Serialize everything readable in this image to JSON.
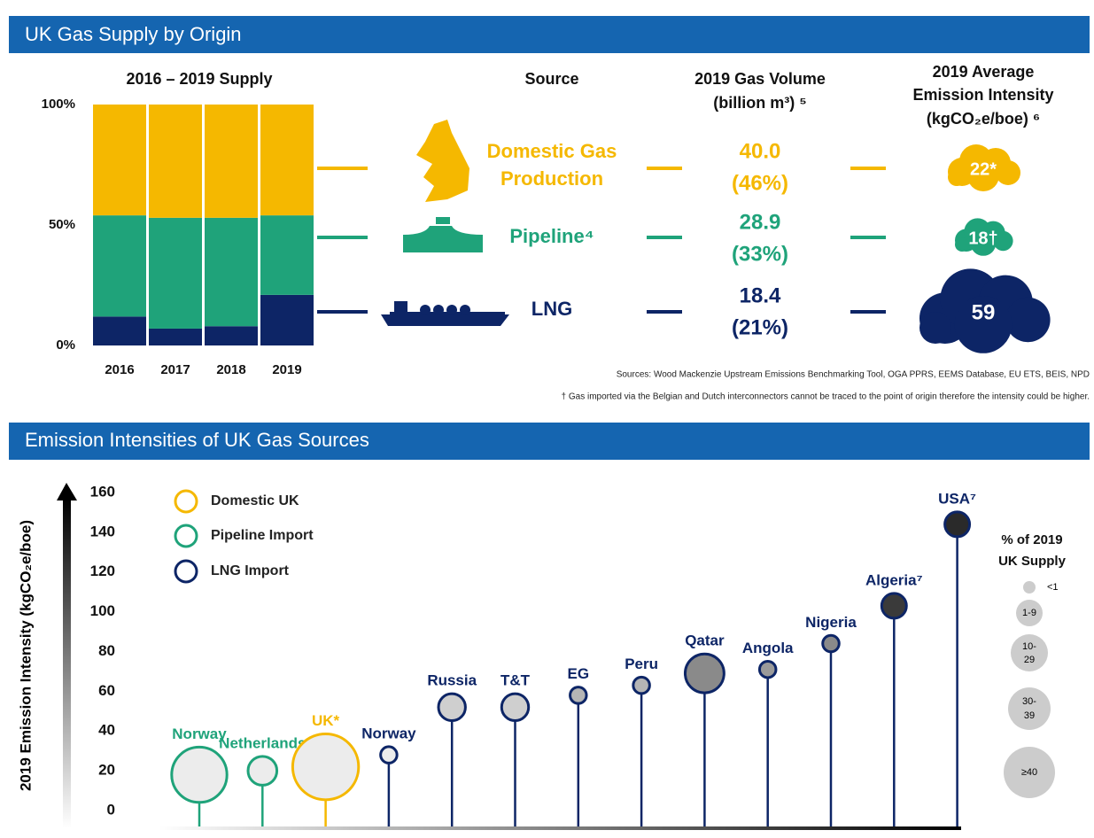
{
  "header": "UK Gas Supply by Origin",
  "table": {
    "columns": [
      "Source",
      "2019 Gas Volume",
      "(billion m³) ⁵",
      "2019 Average",
      "Emission Intensity",
      "(kgCO₂e/boe) ⁶"
    ],
    "rows": [
      {
        "source": [
          "Domestic Gas",
          "Production"
        ],
        "volume": "40.0",
        "share": "(46%)",
        "intensity": "22*",
        "color": "#f5b800"
      },
      {
        "source": [
          "Pipeline⁴"
        ],
        "volume": "28.9",
        "share": "(33%)",
        "intensity": "18†",
        "color": "#1fa37a"
      },
      {
        "source": [
          "LNG"
        ],
        "volume": "18.4",
        "share": "(21%)",
        "intensity": "59",
        "color": "#0d2566"
      }
    ]
  },
  "sources": "Sources: Wood Mackenzie Upstream Emissions Benchmarking Tool, OGA PPRS, EEMS Database, EU ETS, BEIS, NPD",
  "footnote": "† Gas imported via the Belgian and Dutch interconnectors cannot be traced to the point of origin therefore the intensity could be higher.",
  "section2_title": "Emission Intensities of UK Gas Sources",
  "size_legend": {
    "title": [
      "% of 2019",
      "UK Supply"
    ],
    "labels": [
      "<1",
      "1-9",
      "10-",
      "29",
      "30-",
      "39",
      "≥40"
    ]
  },
  "chart_data": [
    {
      "type": "stacked_bar",
      "title": "2016 – 2019 Supply",
      "categories": [
        "2016",
        "2017",
        "2018",
        "2019"
      ],
      "series": [
        {
          "color": "#0d2566",
          "values": [
            12,
            7,
            8,
            21
          ]
        },
        {
          "color": "#1fa37a",
          "values": [
            42,
            46,
            45,
            33
          ]
        },
        {
          "color": "#f5b800",
          "values": [
            46,
            47,
            47,
            46
          ]
        }
      ],
      "ylim": [
        0,
        100
      ],
      "yticks": [
        {
          "value": 0,
          "label": "0%"
        },
        {
          "value": 50,
          "label": "50%"
        },
        {
          "value": 100,
          "label": "100%"
        }
      ]
    },
    {
      "type": "lollipop",
      "ylabel": "2019 Emission Intensity (kgCO₂e/boe)",
      "ylim": [
        0,
        160
      ],
      "yticks": [
        0,
        20,
        40,
        60,
        80,
        100,
        120,
        140,
        160
      ],
      "series": [
        {
          "name": "Pipeline Import",
          "color": "#1fa37a",
          "labels": [
            "Norway",
            "Netherlands"
          ],
          "values": [
            18,
            20
          ],
          "supply": [
            30,
            5
          ],
          "fills": [
            "#ececec",
            "#ececec"
          ]
        },
        {
          "name": "Domestic UK",
          "color": "#f5b800",
          "labels": [
            "UK*"
          ],
          "values": [
            22
          ],
          "supply": [
            46
          ],
          "fills": [
            "#ececec"
          ]
        },
        {
          "name": "LNG Import",
          "color": "#0d2566",
          "labels": [
            "Norway",
            "Russia",
            "T&T",
            "EG",
            "Peru",
            "Qatar",
            "Angola",
            "Nigeria",
            "Algeria⁷",
            "USA⁷"
          ],
          "values": [
            28,
            52,
            52,
            58,
            63,
            69,
            71,
            84,
            103,
            144
          ],
          "supply": [
            0.5,
            4,
            4,
            0.5,
            0.5,
            12,
            0.5,
            0.5,
            3,
            3
          ],
          "fills": [
            "#ececec",
            "#cfcfcf",
            "#cfcfcf",
            "#b5b5b5",
            "#b5b5b5",
            "#8a8a8a",
            "#9a9a9a",
            "#8a8a8a",
            "#3a3a3a",
            "#2a2a2a"
          ]
        }
      ]
    }
  ]
}
